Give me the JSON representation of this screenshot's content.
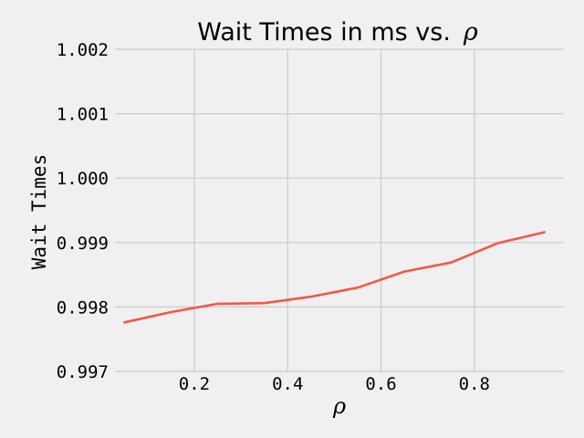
{
  "chart_data": {
    "type": "line",
    "title": "Wait Times in ms vs.",
    "title_math": "ρ",
    "xlabel": "ρ",
    "ylabel": "Wait Times",
    "xlim": [
      0.03,
      0.99
    ],
    "ylim": [
      0.997,
      1.002
    ],
    "x_ticks": [
      0.2,
      0.4,
      0.6,
      0.8
    ],
    "x_tick_labels": [
      "0.2",
      "0.4",
      "0.6",
      "0.8"
    ],
    "y_ticks": [
      0.997,
      0.998,
      0.999,
      1.0,
      1.001,
      1.002
    ],
    "y_tick_labels": [
      "0.997",
      "0.998",
      "0.999",
      "1.000",
      "1.001",
      "1.002"
    ],
    "grid": true,
    "series": [
      {
        "color": "#f2584a",
        "x": [
          0.05,
          0.15,
          0.25,
          0.35,
          0.45,
          0.55,
          0.65,
          0.75,
          0.85,
          0.95
        ],
        "y": [
          0.99776,
          0.99792,
          0.99805,
          0.99806,
          0.99816,
          0.9983,
          0.99855,
          0.99869,
          0.99899,
          0.99916
        ]
      }
    ]
  }
}
